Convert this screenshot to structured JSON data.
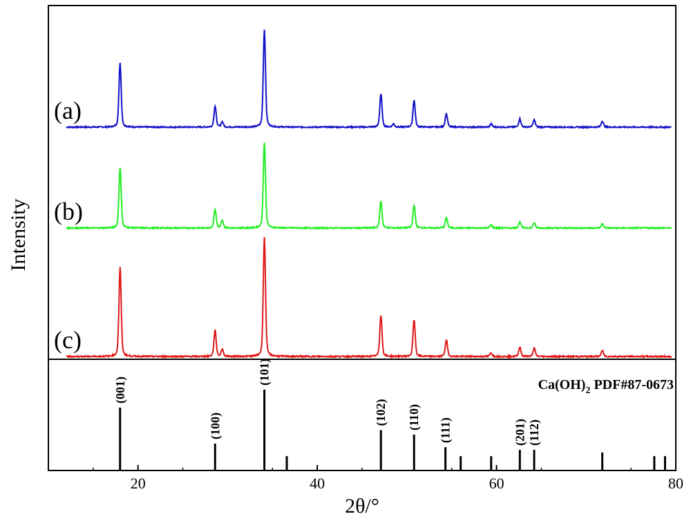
{
  "chart_data": {
    "type": "line",
    "title": "",
    "xlabel": "2θ/°",
    "ylabel": "Intensity",
    "xlim": [
      10,
      80
    ],
    "xticks": [
      20,
      40,
      60,
      80
    ],
    "grid": false,
    "series": [
      {
        "label": "(a)",
        "color": "#1010c8",
        "peaks": [
          {
            "x": 18.0,
            "h": 0.62
          },
          {
            "x": 28.6,
            "h": 0.2
          },
          {
            "x": 29.4,
            "h": 0.05
          },
          {
            "x": 34.1,
            "h": 0.94
          },
          {
            "x": 47.1,
            "h": 0.32
          },
          {
            "x": 48.5,
            "h": 0.03
          },
          {
            "x": 50.8,
            "h": 0.26
          },
          {
            "x": 54.4,
            "h": 0.13
          },
          {
            "x": 59.4,
            "h": 0.03
          },
          {
            "x": 62.6,
            "h": 0.08
          },
          {
            "x": 64.2,
            "h": 0.07
          },
          {
            "x": 71.8,
            "h": 0.06
          }
        ]
      },
      {
        "label": "(b)",
        "color": "#22ee22",
        "peaks": [
          {
            "x": 18.0,
            "h": 0.58
          },
          {
            "x": 28.6,
            "h": 0.18
          },
          {
            "x": 29.4,
            "h": 0.07
          },
          {
            "x": 34.1,
            "h": 0.82
          },
          {
            "x": 47.1,
            "h": 0.26
          },
          {
            "x": 50.8,
            "h": 0.22
          },
          {
            "x": 54.4,
            "h": 0.1
          },
          {
            "x": 59.4,
            "h": 0.03
          },
          {
            "x": 62.6,
            "h": 0.06
          },
          {
            "x": 64.2,
            "h": 0.05
          },
          {
            "x": 71.8,
            "h": 0.04
          }
        ]
      },
      {
        "label": "(c)",
        "color": "#e01818",
        "peaks": [
          {
            "x": 18.0,
            "h": 0.75
          },
          {
            "x": 28.6,
            "h": 0.22
          },
          {
            "x": 29.4,
            "h": 0.06
          },
          {
            "x": 34.1,
            "h": 1.0
          },
          {
            "x": 47.1,
            "h": 0.35
          },
          {
            "x": 50.8,
            "h": 0.31
          },
          {
            "x": 54.4,
            "h": 0.14
          },
          {
            "x": 59.4,
            "h": 0.03
          },
          {
            "x": 62.6,
            "h": 0.08
          },
          {
            "x": 64.2,
            "h": 0.07
          },
          {
            "x": 71.8,
            "h": 0.05
          }
        ]
      }
    ],
    "reference": {
      "title_main": "Ca(OH)",
      "title_sub": "2",
      "title_rest": " PDF#87-0673",
      "lines": [
        {
          "x": 18.0,
          "h": 0.7,
          "label": "(001)"
        },
        {
          "x": 28.6,
          "h": 0.3,
          "label": "(100)"
        },
        {
          "x": 34.1,
          "h": 0.9,
          "label": "(101)"
        },
        {
          "x": 36.6,
          "h": 0.16,
          "label": ""
        },
        {
          "x": 47.1,
          "h": 0.45,
          "label": "(102)"
        },
        {
          "x": 50.8,
          "h": 0.4,
          "label": "(110)"
        },
        {
          "x": 54.3,
          "h": 0.26,
          "label": "(111)"
        },
        {
          "x": 56.0,
          "h": 0.16,
          "label": ""
        },
        {
          "x": 59.4,
          "h": 0.16,
          "label": ""
        },
        {
          "x": 62.6,
          "h": 0.23,
          "label": "(201)"
        },
        {
          "x": 64.2,
          "h": 0.23,
          "label": "(112)"
        },
        {
          "x": 71.8,
          "h": 0.2,
          "label": ""
        },
        {
          "x": 77.6,
          "h": 0.16,
          "label": ""
        },
        {
          "x": 78.8,
          "h": 0.16,
          "label": ""
        }
      ]
    }
  }
}
